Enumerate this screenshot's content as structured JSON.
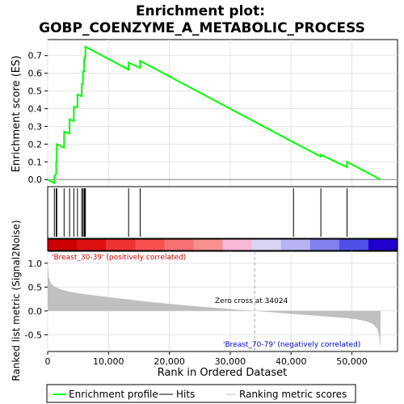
{
  "chart_data": {
    "type": "line",
    "title_line1": "Enrichment plot:",
    "title_line2": "GOBP_COENZYME_A_METABOLIC_PROCESS",
    "top_panel": {
      "ylabel": "Enrichment score (ES)",
      "ylim": [
        -0.04,
        0.79
      ],
      "yticks": [
        "0.0",
        "0.1",
        "0.2",
        "0.3",
        "0.4",
        "0.5",
        "0.6",
        "0.7"
      ],
      "ytick_values": [
        0.0,
        0.1,
        0.2,
        0.3,
        0.4,
        0.5,
        0.6,
        0.7
      ],
      "grid": true,
      "series_color": "#00ff00",
      "series": [
        {
          "x": [
            0,
            1100,
            1100,
            1400,
            1400,
            1500,
            1500,
            2700,
            2700,
            3600,
            3600,
            4300,
            4300,
            4900,
            4900,
            5600,
            5600,
            5800,
            5800,
            6000,
            6000,
            6100,
            6100,
            6200,
            6200,
            13300,
            13300,
            15200,
            15200,
            40400,
            40400,
            44900,
            44900,
            49200,
            49200,
            54700
          ],
          "y": [
            0.0,
            -0.02,
            0.02,
            0.03,
            0.1,
            0.1,
            0.2,
            0.18,
            0.27,
            0.26,
            0.34,
            0.33,
            0.41,
            0.41,
            0.48,
            0.47,
            0.54,
            0.54,
            0.61,
            0.61,
            0.68,
            0.68,
            0.69,
            0.69,
            0.75,
            0.62,
            0.66,
            0.63,
            0.67,
            0.21,
            0.21,
            0.13,
            0.14,
            0.07,
            0.1,
            0.0
          ]
        }
      ]
    },
    "hits": {
      "positions": [
        1100,
        1400,
        1500,
        2700,
        3600,
        4300,
        4900,
        5600,
        5800,
        6000,
        6100,
        6200,
        13300,
        15200,
        40400,
        44900,
        49200
      ]
    },
    "ranking_bar_colors": [
      "#cc0000",
      "#dd1111",
      "#ee3333",
      "#f85050",
      "#f87070",
      "#f89090",
      "#f8b8d8",
      "#dcd4f4",
      "#b8b4f4",
      "#8080f0",
      "#5050e8",
      "#2000cc"
    ],
    "bottom_panel": {
      "ylabel": "Ranked list metric (Signal2Noise)",
      "ylim": [
        -0.85,
        1.25
      ],
      "yticks": [
        "-0.5",
        "0.0",
        "0.5",
        "1.0"
      ],
      "ytick_values": [
        -0.5,
        0.0,
        0.5,
        1.0
      ],
      "grid": true,
      "fill_color": "#c0c0c0",
      "zero_cross": 34024,
      "zero_cross_label": "Zero cross at 34024",
      "positive_label": "'Breast_30-39' (positively correlated)",
      "negative_label": "'Breast_70-79' (negatively correlated)",
      "positive_color": "#cc0000",
      "negative_color": "#0000cc",
      "metric_profile": {
        "rank": [
          0,
          200,
          500,
          1000,
          2000,
          3000,
          5000,
          8000,
          12000,
          16000,
          20000,
          25000,
          30000,
          34024,
          38000,
          42000,
          46000,
          49000,
          51000,
          52500,
          53500,
          54200,
          54500,
          54700
        ],
        "value": [
          1.0,
          0.7,
          0.58,
          0.52,
          0.46,
          0.42,
          0.37,
          0.32,
          0.26,
          0.2,
          0.15,
          0.09,
          0.04,
          0.0,
          -0.04,
          -0.08,
          -0.12,
          -0.15,
          -0.18,
          -0.22,
          -0.28,
          -0.38,
          -0.55,
          -0.8
        ]
      }
    },
    "xlabel": "Rank in Ordered Dataset",
    "xlim": [
      0,
      57500
    ],
    "xticks": [
      "0",
      "10,000",
      "20,000",
      "30,000",
      "40,000",
      "50,000"
    ],
    "xtick_values": [
      0,
      10000,
      20000,
      30000,
      40000,
      50000
    ],
    "legend": {
      "placement": "bottom",
      "items": [
        {
          "label": "Enrichment profile",
          "color": "#00ff00"
        },
        {
          "label": "Hits",
          "color": "#000000"
        },
        {
          "label": "Ranking metric scores",
          "color": "#c0c0c0"
        }
      ]
    }
  }
}
